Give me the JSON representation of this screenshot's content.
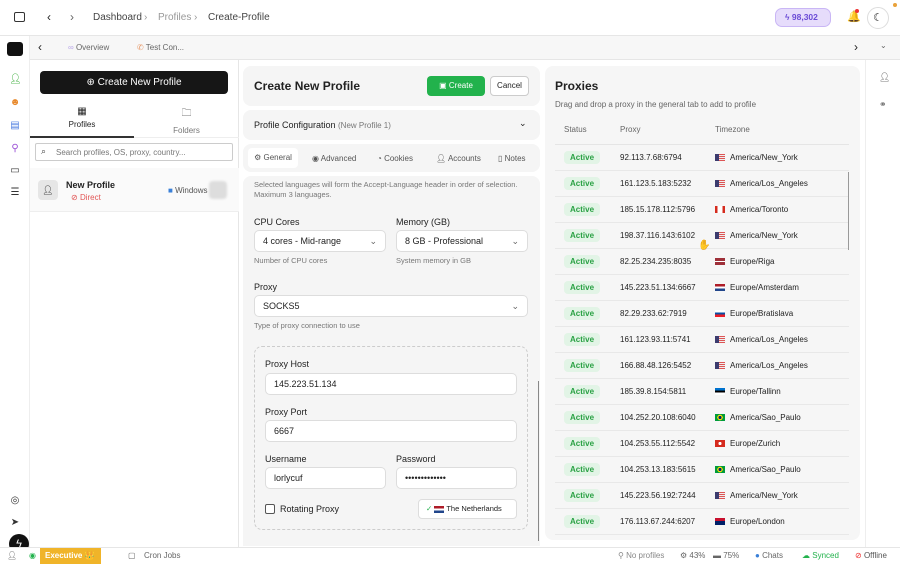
{
  "topbar": {
    "breadcrumb": [
      "Dashboard",
      "Profiles",
      "Create-Profile"
    ],
    "credits": "98,302",
    "accent": "#e6dcfb"
  },
  "tabs": [
    {
      "label": "Overview",
      "icon": "binoculars-icon"
    },
    {
      "label": "Test Con...",
      "icon": "phone-icon"
    }
  ],
  "left": {
    "create_label": "Create New Profile",
    "tabs": [
      {
        "label": "Profiles"
      },
      {
        "label": "Folders"
      }
    ],
    "search_placeholder": "Search profiles, OS, proxy, country...",
    "profile": {
      "name": "New Profile",
      "proxy": "Direct",
      "os": "Windows"
    }
  },
  "center": {
    "title": "Create New Profile",
    "create_label": "Create",
    "cancel_label": "Cancel",
    "config_title": "Profile Configuration",
    "config_sub": "(New Profile 1)",
    "tabs": [
      "General",
      "Advanced",
      "Cookies",
      "Accounts",
      "Notes"
    ],
    "lang_hint": "Selected languages will form the Accept-Language header in order of selection. Maximum 3 languages.",
    "cpu": {
      "label": "CPU Cores",
      "value": "4 cores - Mid-range",
      "hint": "Number of CPU cores"
    },
    "memory": {
      "label": "Memory (GB)",
      "value": "8 GB - Professional",
      "hint": "System memory in GB"
    },
    "proxy": {
      "label": "Proxy",
      "value": "SOCKS5",
      "hint": "Type of proxy connection to use"
    },
    "host": {
      "label": "Proxy Host",
      "value": "145.223.51.134"
    },
    "port": {
      "label": "Proxy Port",
      "value": "6667"
    },
    "username": {
      "label": "Username",
      "value": "lorlycuf"
    },
    "password": {
      "label": "Password",
      "value": "•••••••••••••"
    },
    "rotating_label": "Rotating Proxy",
    "rotating_checked": false,
    "country": "The Netherlands"
  },
  "proxies": {
    "title": "Proxies",
    "subtitle": "Drag and drop a proxy in the general tab to add to profile",
    "columns": [
      "Status",
      "Proxy",
      "Timezone"
    ],
    "rows": [
      {
        "status": "Active",
        "proxy": "92.113.7.68:6794",
        "tz": "America/New_York",
        "flag": "us"
      },
      {
        "status": "Active",
        "proxy": "161.123.5.183:5232",
        "tz": "America/Los_Angeles",
        "flag": "us"
      },
      {
        "status": "Active",
        "proxy": "185.15.178.112:5796",
        "tz": "America/Toronto",
        "flag": "ca"
      },
      {
        "status": "Active",
        "proxy": "198.37.116.143:6102",
        "tz": "America/New_York",
        "flag": "us"
      },
      {
        "status": "Active",
        "proxy": "82.25.234.235:8035",
        "tz": "Europe/Riga",
        "flag": "lv"
      },
      {
        "status": "Active",
        "proxy": "145.223.51.134:6667",
        "tz": "Europe/Amsterdam",
        "flag": "nl"
      },
      {
        "status": "Active",
        "proxy": "82.29.233.62:7919",
        "tz": "Europe/Bratislava",
        "flag": "sk"
      },
      {
        "status": "Active",
        "proxy": "161.123.93.11:5741",
        "tz": "America/Los_Angeles",
        "flag": "us"
      },
      {
        "status": "Active",
        "proxy": "166.88.48.126:5452",
        "tz": "America/Los_Angeles",
        "flag": "us"
      },
      {
        "status": "Active",
        "proxy": "185.39.8.154:5811",
        "tz": "Europe/Tallinn",
        "flag": "ee"
      },
      {
        "status": "Active",
        "proxy": "104.252.20.108:6040",
        "tz": "America/Sao_Paulo",
        "flag": "br"
      },
      {
        "status": "Active",
        "proxy": "104.253.55.112:5542",
        "tz": "Europe/Zurich",
        "flag": "ch"
      },
      {
        "status": "Active",
        "proxy": "104.253.13.183:5615",
        "tz": "America/Sao_Paulo",
        "flag": "br"
      },
      {
        "status": "Active",
        "proxy": "145.223.56.192:7244",
        "tz": "America/New_York",
        "flag": "us"
      },
      {
        "status": "Active",
        "proxy": "176.113.67.244:6207",
        "tz": "Europe/London",
        "flag": "gb"
      }
    ]
  },
  "status": {
    "plan": "Executive",
    "cron": "Cron Jobs",
    "profiles": "No profiles",
    "cpu": "43%",
    "mem": "75%",
    "chats": "Chats",
    "synced": "Synced",
    "offline": "Offline"
  }
}
